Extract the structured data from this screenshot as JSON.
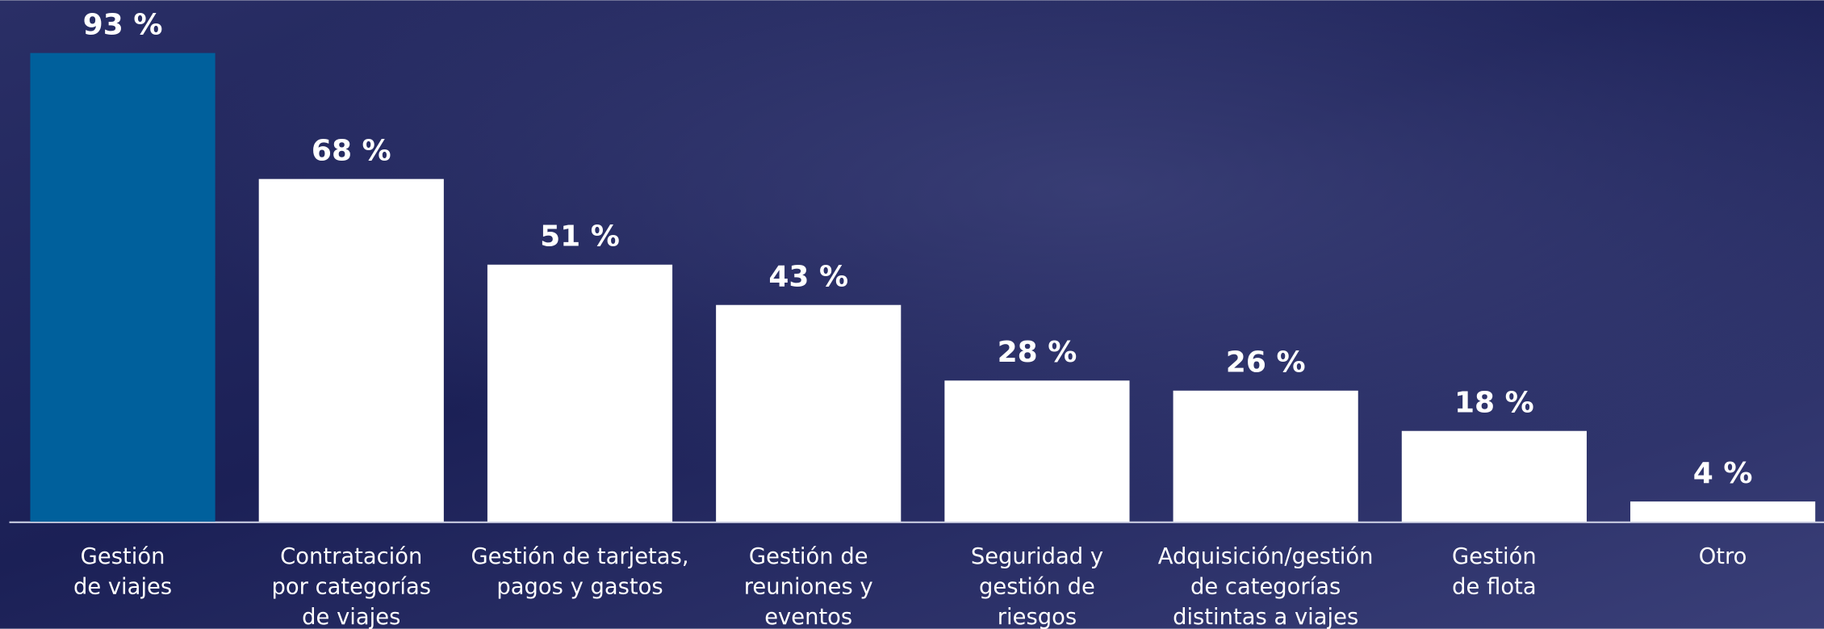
{
  "chart_data": {
    "type": "bar",
    "categories": [
      "Gestión\nde viajes",
      "Contratación\npor categorías\nde viajes",
      "Gestión de tarjetas,\npagos y gastos",
      "Gestión de\nreuniones y\neventos",
      "Seguridad y\ngestión de\nriesgos",
      "Adquisición/gestión\nde categorías\ndistintas a viajes",
      "Gestión\nde flota",
      "Otro"
    ],
    "values": [
      93,
      68,
      51,
      43,
      28,
      26,
      18,
      4
    ],
    "value_labels": [
      "93 %",
      "68 %",
      "51 %",
      "43 %",
      "28 %",
      "26 %",
      "18 %",
      "4 %"
    ],
    "colors": [
      "#00609c",
      "#ffffff",
      "#ffffff",
      "#ffffff",
      "#ffffff",
      "#ffffff",
      "#ffffff",
      "#ffffff"
    ],
    "ylim": [
      0,
      100
    ]
  }
}
